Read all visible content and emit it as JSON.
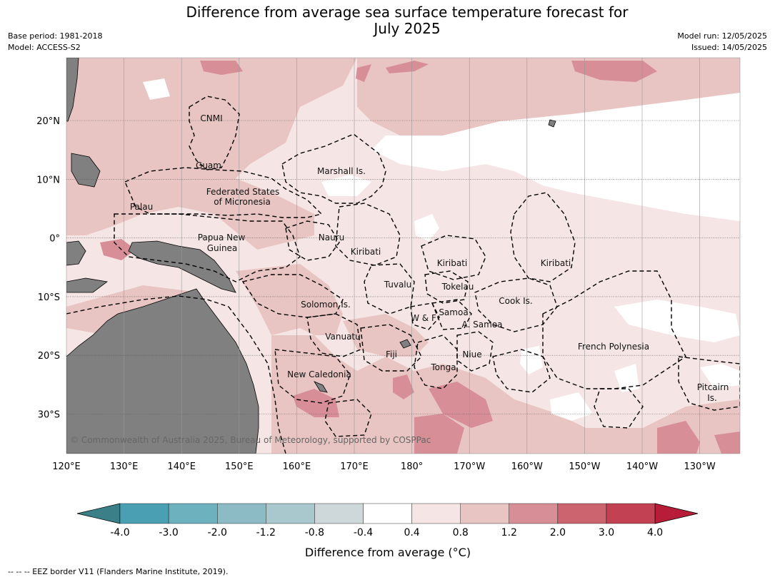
{
  "title": {
    "line1": "Difference from average sea surface temperature forecast for",
    "line2": "July 2025"
  },
  "meta": {
    "base_period": "Base period: 1981-2018",
    "model": "Model: ACCESS-S2",
    "model_run": "Model run: 12/05/2025",
    "issued": "Issued: 14/05/2025"
  },
  "axes": {
    "lat_ticks": [
      "20°N",
      "10°N",
      "0°",
      "10°S",
      "20°S",
      "30°S"
    ],
    "lon_ticks": [
      "120°E",
      "130°E",
      "140°E",
      "150°E",
      "160°E",
      "170°E",
      "180°",
      "170°W",
      "160°W",
      "150°W",
      "140°W",
      "130°W"
    ]
  },
  "regions": [
    {
      "name": "CNMI"
    },
    {
      "name": "Guam"
    },
    {
      "name": "Marshall Is."
    },
    {
      "name": "Federated States"
    },
    {
      "name": "of Micronesia"
    },
    {
      "name": "Palau"
    },
    {
      "name": "Papua New"
    },
    {
      "name": "Guinea"
    },
    {
      "name": "Nauru"
    },
    {
      "name": "Kiribati"
    },
    {
      "name": "Kiribati"
    },
    {
      "name": "Kiribati"
    },
    {
      "name": "Tuvalu"
    },
    {
      "name": "Tokelau"
    },
    {
      "name": "Cook Is."
    },
    {
      "name": "Solomon Is."
    },
    {
      "name": "W & F"
    },
    {
      "name": "Samoa"
    },
    {
      "name": "A. Samoa"
    },
    {
      "name": "Vanuatu"
    },
    {
      "name": "Fiji"
    },
    {
      "name": "Niue"
    },
    {
      "name": "French Polynesia"
    },
    {
      "name": "Tonga"
    },
    {
      "name": "New Caledonia"
    },
    {
      "name": "Pitcairn"
    },
    {
      "name": "Is."
    }
  ],
  "copyright": "© Commonwealth of Australia 2025, Bureau of Meteorology, supported by COSPPac",
  "colorbar": {
    "title": "Difference from average (°C)",
    "ticks": [
      "-4.0",
      "-3.0",
      "-2.0",
      "-1.2",
      "-0.8",
      "-0.4",
      "0.4",
      "0.8",
      "1.2",
      "2.0",
      "3.0",
      "4.0"
    ],
    "colors": [
      "#3b7f89",
      "#4aa0b2",
      "#6db0be",
      "#8cbac5",
      "#a9c8cd",
      "#ced8da",
      "#ffffff",
      "#f5e6e5",
      "#e8c5c2",
      "#d88e97",
      "#cc6470",
      "#c24253",
      "#b71c38"
    ]
  },
  "footnote": "--  --  -- EEZ border V11 (Flanders Marine Institute, 2019)."
}
